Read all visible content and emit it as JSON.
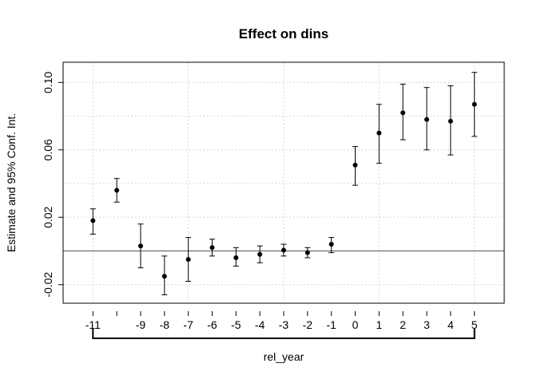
{
  "chart_data": {
    "type": "scatter",
    "title": "Effect on dins",
    "xlabel": "rel_year",
    "ylabel": "Estimate and 95% Conf. Int.",
    "x_tick_labels": [
      "-11",
      "-9",
      "-8",
      "-7",
      "-6",
      "-5",
      "-4",
      "-3",
      "-2",
      "-1",
      "0",
      "1",
      "2",
      "3",
      "4",
      "5"
    ],
    "y_tick_labels": [
      "-0.02",
      "0.02",
      "0.06",
      "0.10"
    ],
    "y_ticks": [
      -0.02,
      0.02,
      0.06,
      0.1
    ],
    "xlim": [
      -12.25,
      6.25
    ],
    "ylim": [
      -0.031,
      0.112
    ],
    "grid": true,
    "reference_line": 0,
    "series": [
      {
        "x": [
          -11,
          -10,
          -9,
          -8,
          -7,
          -6,
          -5,
          -4,
          -3,
          -2,
          -1,
          0,
          1,
          2,
          3,
          4,
          5
        ],
        "estimate": [
          0.018,
          0.036,
          0.003,
          -0.015,
          -0.005,
          0.002,
          -0.004,
          -0.002,
          0.0005,
          -0.001,
          0.004,
          0.051,
          0.07,
          0.082,
          0.078,
          0.077,
          0.087
        ],
        "ci_low": [
          0.01,
          0.029,
          -0.01,
          -0.026,
          -0.018,
          -0.003,
          -0.009,
          -0.007,
          -0.003,
          -0.004,
          -0.001,
          0.039,
          0.052,
          0.066,
          0.06,
          0.057,
          0.068
        ],
        "ci_high": [
          0.025,
          0.043,
          0.016,
          -0.003,
          0.008,
          0.007,
          0.002,
          0.003,
          0.004,
          0.002,
          0.008,
          0.062,
          0.087,
          0.099,
          0.097,
          0.098,
          0.106
        ]
      }
    ]
  }
}
